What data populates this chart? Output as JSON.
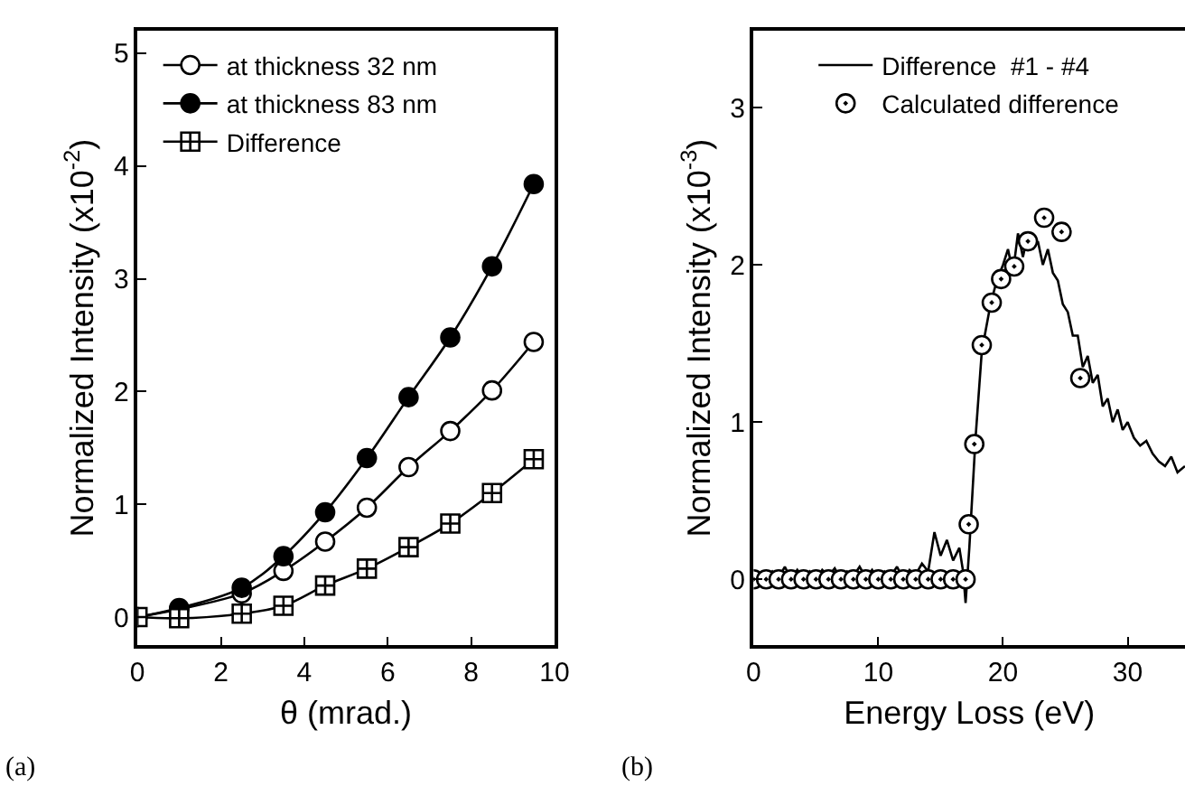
{
  "chart_data": [
    {
      "type": "line",
      "xlabel": "θ (mrad.)",
      "ylabel": "Normalized Intensity (x10$^{-2}$)",
      "annotations": [
        "(a)"
      ],
      "x": [
        0,
        1,
        2.5,
        3.5,
        4.5,
        5.5,
        6.5,
        7.5,
        8.5,
        9.5
      ],
      "series": [
        {
          "name": "at thickness 32 nm",
          "color": "#000000",
          "marker": "circle-open",
          "values": [
            0,
            0.07,
            0.21,
            0.41,
            0.67,
            0.97,
            1.33,
            1.65,
            2.01,
            2.44
          ]
        },
        {
          "name": "at thickness 83 nm",
          "color": "#000000",
          "marker": "circle",
          "values": [
            0,
            0.08,
            0.26,
            0.54,
            0.93,
            1.41,
            1.95,
            2.48,
            3.11,
            3.84
          ]
        },
        {
          "name": "Difference",
          "color": "#000000",
          "marker": "cross",
          "values": [
            0,
            -0.01,
            0.03,
            0.1,
            0.28,
            0.43,
            0.62,
            0.83,
            1.1,
            1.4
          ]
        }
      ],
      "xlim": [
        0,
        10
      ],
      "xticks": [
        0,
        2,
        4,
        6,
        8,
        10
      ],
      "ylim": [
        -0.25,
        5.2
      ],
      "yticks": [
        0,
        1,
        2,
        3,
        4,
        5
      ],
      "legend": "top left",
      "line_style": "solid"
    },
    {
      "type": "line",
      "xlabel": "Energy Loss (eV)",
      "ylabel": "Normalized Intensity (x10$^{-3}$)",
      "annotations": [
        "(b)"
      ],
      "series": [
        {
          "name": "Difference  #1 - #4",
          "color": "#000000",
          "marker": "none",
          "x": [
            0,
            0.5,
            1,
            1.5,
            2,
            2.5,
            3,
            3.5,
            4,
            4.5,
            5,
            5.5,
            6,
            6.5,
            7,
            7.5,
            8,
            8.5,
            9,
            9.5,
            10,
            10.5,
            11,
            11.5,
            12,
            12.5,
            13,
            13.5,
            14,
            14.5,
            15,
            15.5,
            16,
            16.5,
            16.8,
            17,
            17.3,
            17.8,
            18.3,
            19,
            19.5,
            20,
            20.4,
            20.8,
            21.2,
            21.6,
            22,
            22.4,
            22.8,
            23.2,
            23.6,
            24,
            24.4,
            24.8,
            25.2,
            25.6,
            26,
            26.4,
            26.8,
            27.2,
            27.6,
            28,
            28.4,
            28.8,
            29.2,
            29.6,
            30,
            30.5,
            31,
            31.5,
            32,
            32.5,
            33,
            33.5,
            34,
            34.6
          ],
          "values": [
            0,
            0.02,
            0,
            0.05,
            0.01,
            0.08,
            0,
            0.06,
            0.01,
            0.05,
            0,
            0.06,
            0.02,
            0.07,
            0,
            0.05,
            0.02,
            0.08,
            0.01,
            0.06,
            0,
            0.05,
            0.02,
            0.08,
            0,
            0.06,
            0.03,
            0.1,
            0.05,
            0.3,
            0.15,
            0.25,
            0.12,
            0.2,
            0.05,
            -0.15,
            0.2,
            0.9,
            1.45,
            1.75,
            1.9,
            2.0,
            2.1,
            1.95,
            2.2,
            2.05,
            2.2,
            2.1,
            2.15,
            2.0,
            2.1,
            1.95,
            1.9,
            1.75,
            1.7,
            1.55,
            1.55,
            1.35,
            1.42,
            1.25,
            1.3,
            1.1,
            1.15,
            1.0,
            1.08,
            0.95,
            1.0,
            0.9,
            0.85,
            0.88,
            0.8,
            0.75,
            0.72,
            0.78,
            0.68,
            0.72
          ]
        },
        {
          "name": "Calculated difference",
          "color": "#000000",
          "type": "scatter",
          "marker": "circle-dot",
          "x": [
            0,
            1,
            2,
            3,
            4,
            5,
            6,
            7,
            8,
            9,
            10,
            11,
            12,
            13,
            14,
            15,
            16,
            17,
            17.25,
            17.7,
            18.3,
            19.1,
            19.85,
            20.9,
            22.0,
            23.3,
            24.7,
            26.2
          ],
          "values": [
            0,
            0,
            0,
            0,
            0,
            0,
            0,
            0,
            0,
            0,
            0,
            0,
            0,
            0,
            0,
            0,
            0,
            0,
            0.35,
            0.86,
            1.49,
            1.76,
            1.91,
            1.99,
            2.15,
            2.3,
            2.21,
            1.28
          ]
        }
      ],
      "xlim": [
        0,
        34.6
      ],
      "xticks": [
        0,
        10,
        20,
        30
      ],
      "ylim": [
        -0.42,
        3.49
      ],
      "yticks": [
        0,
        1,
        2,
        3
      ],
      "legend": "top",
      "line_style": "solid"
    }
  ]
}
